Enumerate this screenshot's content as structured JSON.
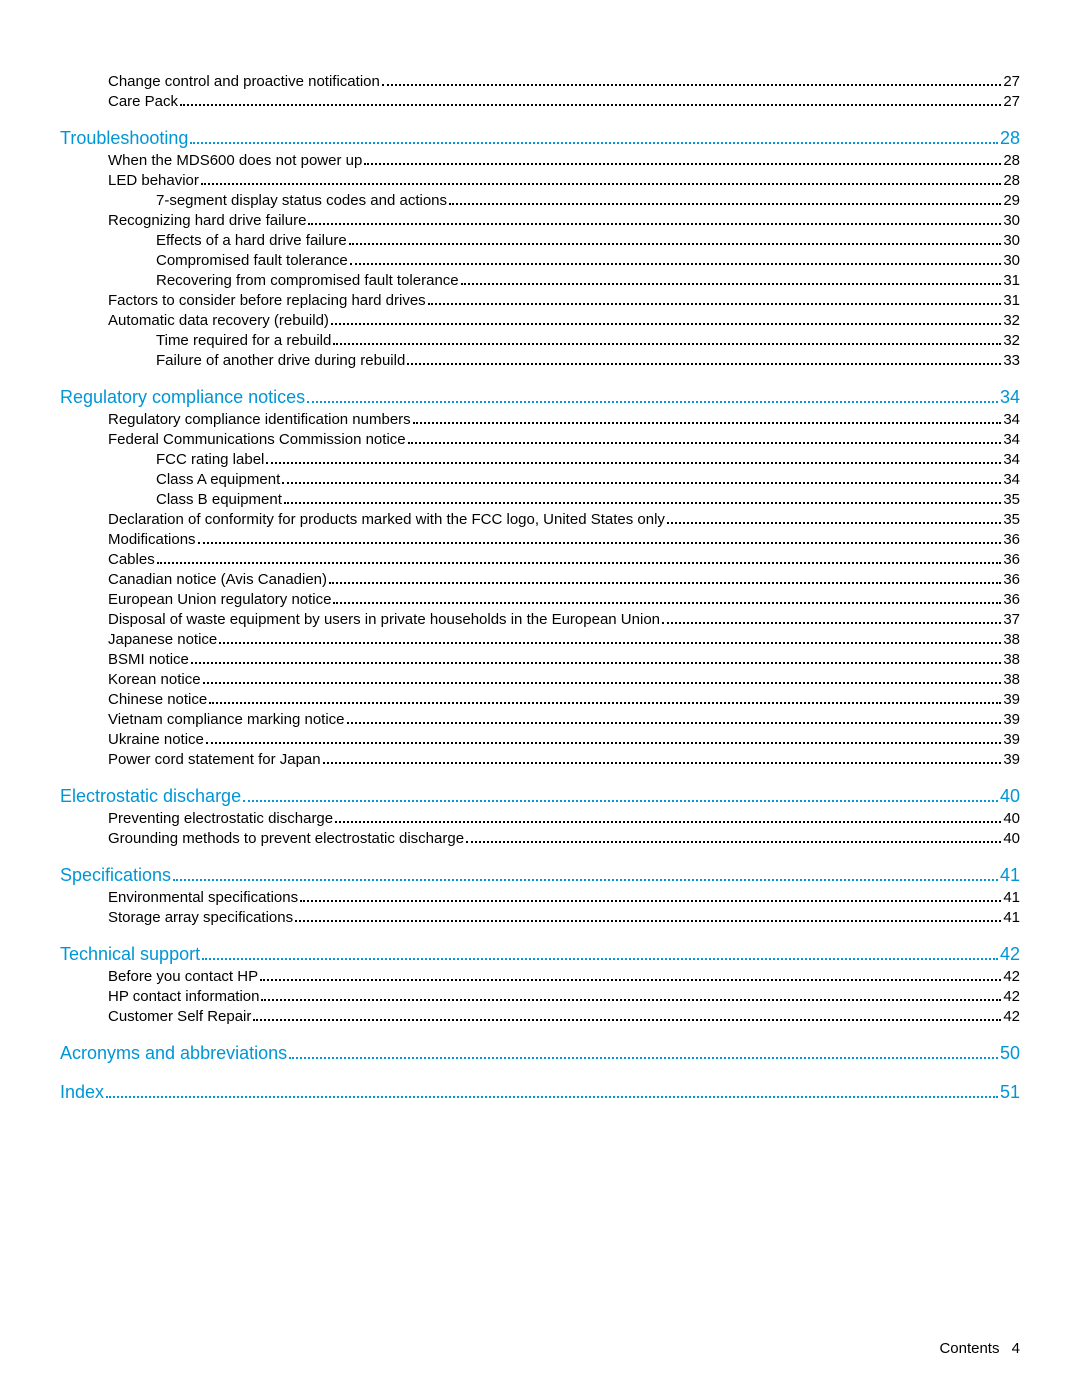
{
  "footer": {
    "label": "Contents",
    "page": "4"
  },
  "toc": [
    {
      "level": 2,
      "label": "Change control and proactive notification",
      "page": "27"
    },
    {
      "level": 2,
      "label": "Care Pack",
      "page": "27"
    },
    {
      "level": 1,
      "label": "Troubleshooting",
      "page": "28"
    },
    {
      "level": 2,
      "label": "When the MDS600 does not power up",
      "page": "28"
    },
    {
      "level": 2,
      "label": "LED behavior",
      "page": "28"
    },
    {
      "level": 3,
      "label": "7-segment display status codes and actions",
      "page": "29"
    },
    {
      "level": 2,
      "label": "Recognizing hard drive failure",
      "page": "30"
    },
    {
      "level": 3,
      "label": "Effects of a hard drive failure",
      "page": "30"
    },
    {
      "level": 3,
      "label": "Compromised fault tolerance",
      "page": "30"
    },
    {
      "level": 3,
      "label": "Recovering from compromised fault tolerance",
      "page": "31"
    },
    {
      "level": 2,
      "label": "Factors to consider before replacing hard drives",
      "page": "31"
    },
    {
      "level": 2,
      "label": "Automatic data recovery (rebuild)",
      "page": "32"
    },
    {
      "level": 3,
      "label": "Time required for a rebuild",
      "page": "32"
    },
    {
      "level": 3,
      "label": "Failure of another drive during rebuild",
      "page": "33"
    },
    {
      "level": 1,
      "label": "Regulatory compliance notices",
      "page": "34"
    },
    {
      "level": 2,
      "label": "Regulatory compliance identification numbers",
      "page": "34"
    },
    {
      "level": 2,
      "label": "Federal Communications Commission notice",
      "page": "34"
    },
    {
      "level": 3,
      "label": "FCC rating label",
      "page": "34"
    },
    {
      "level": 3,
      "label": "Class A equipment",
      "page": "34"
    },
    {
      "level": 3,
      "label": "Class B equipment",
      "page": "35"
    },
    {
      "level": 2,
      "label": "Declaration of conformity for products marked with the FCC logo, United States only",
      "page": "35"
    },
    {
      "level": 2,
      "label": "Modifications",
      "page": "36"
    },
    {
      "level": 2,
      "label": "Cables",
      "page": "36"
    },
    {
      "level": 2,
      "label": "Canadian notice (Avis Canadien)",
      "page": "36"
    },
    {
      "level": 2,
      "label": "European Union regulatory notice",
      "page": "36"
    },
    {
      "level": 2,
      "label": "Disposal of waste equipment by users in private households in the European Union",
      "page": "37"
    },
    {
      "level": 2,
      "label": "Japanese notice",
      "page": "38"
    },
    {
      "level": 2,
      "label": "BSMI notice",
      "page": "38"
    },
    {
      "level": 2,
      "label": "Korean notice",
      "page": "38"
    },
    {
      "level": 2,
      "label": "Chinese notice",
      "page": "39"
    },
    {
      "level": 2,
      "label": "Vietnam compliance marking notice",
      "page": "39"
    },
    {
      "level": 2,
      "label": "Ukraine notice",
      "page": "39"
    },
    {
      "level": 2,
      "label": "Power cord statement for Japan",
      "page": "39"
    },
    {
      "level": 1,
      "label": "Electrostatic discharge",
      "page": "40"
    },
    {
      "level": 2,
      "label": "Preventing electrostatic discharge",
      "page": "40"
    },
    {
      "level": 2,
      "label": "Grounding methods to prevent electrostatic discharge",
      "page": "40"
    },
    {
      "level": 1,
      "label": "Specifications",
      "page": "41"
    },
    {
      "level": 2,
      "label": "Environmental specifications",
      "page": "41"
    },
    {
      "level": 2,
      "label": "Storage array specifications",
      "page": "41"
    },
    {
      "level": 1,
      "label": "Technical support",
      "page": "42"
    },
    {
      "level": 2,
      "label": "Before you contact HP",
      "page": "42"
    },
    {
      "level": 2,
      "label": "HP contact information",
      "page": "42"
    },
    {
      "level": 2,
      "label": "Customer Self Repair",
      "page": "42"
    },
    {
      "level": 1,
      "label": "Acronyms and abbreviations",
      "page": "50"
    },
    {
      "level": 1,
      "label": "Index",
      "page": "51"
    }
  ]
}
